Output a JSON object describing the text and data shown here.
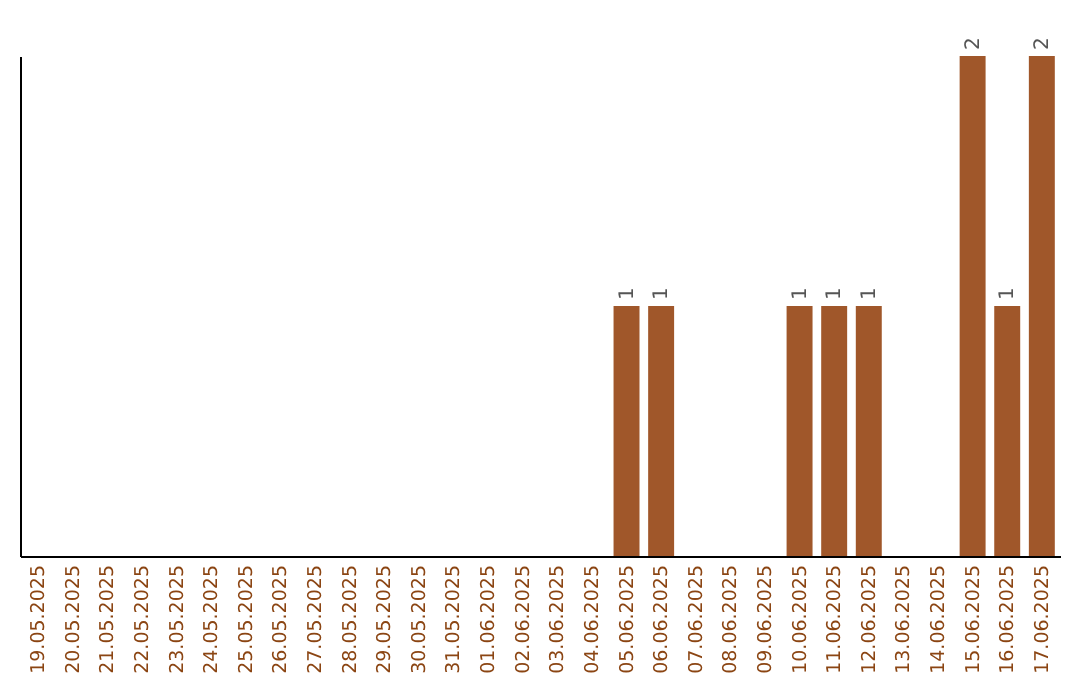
{
  "chart_data": {
    "type": "bar",
    "categories": [
      "19.05.2025",
      "20.05.2025",
      "21.05.2025",
      "22.05.2025",
      "23.05.2025",
      "24.05.2025",
      "25.05.2025",
      "26.05.2025",
      "27.05.2025",
      "28.05.2025",
      "29.05.2025",
      "30.05.2025",
      "31.05.2025",
      "01.06.2025",
      "02.06.2025",
      "03.06.2025",
      "04.06.2025",
      "05.06.2025",
      "06.06.2025",
      "07.06.2025",
      "08.06.2025",
      "09.06.2025",
      "10.06.2025",
      "11.06.2025",
      "12.06.2025",
      "13.06.2025",
      "14.06.2025",
      "15.06.2025",
      "16.06.2025",
      "17.06.2025"
    ],
    "values": [
      null,
      null,
      null,
      null,
      null,
      null,
      null,
      null,
      null,
      null,
      null,
      null,
      null,
      null,
      null,
      null,
      null,
      1,
      1,
      null,
      null,
      null,
      1,
      1,
      1,
      null,
      null,
      2,
      1,
      2
    ],
    "data_labels": true,
    "color": "#a0572a"
  }
}
